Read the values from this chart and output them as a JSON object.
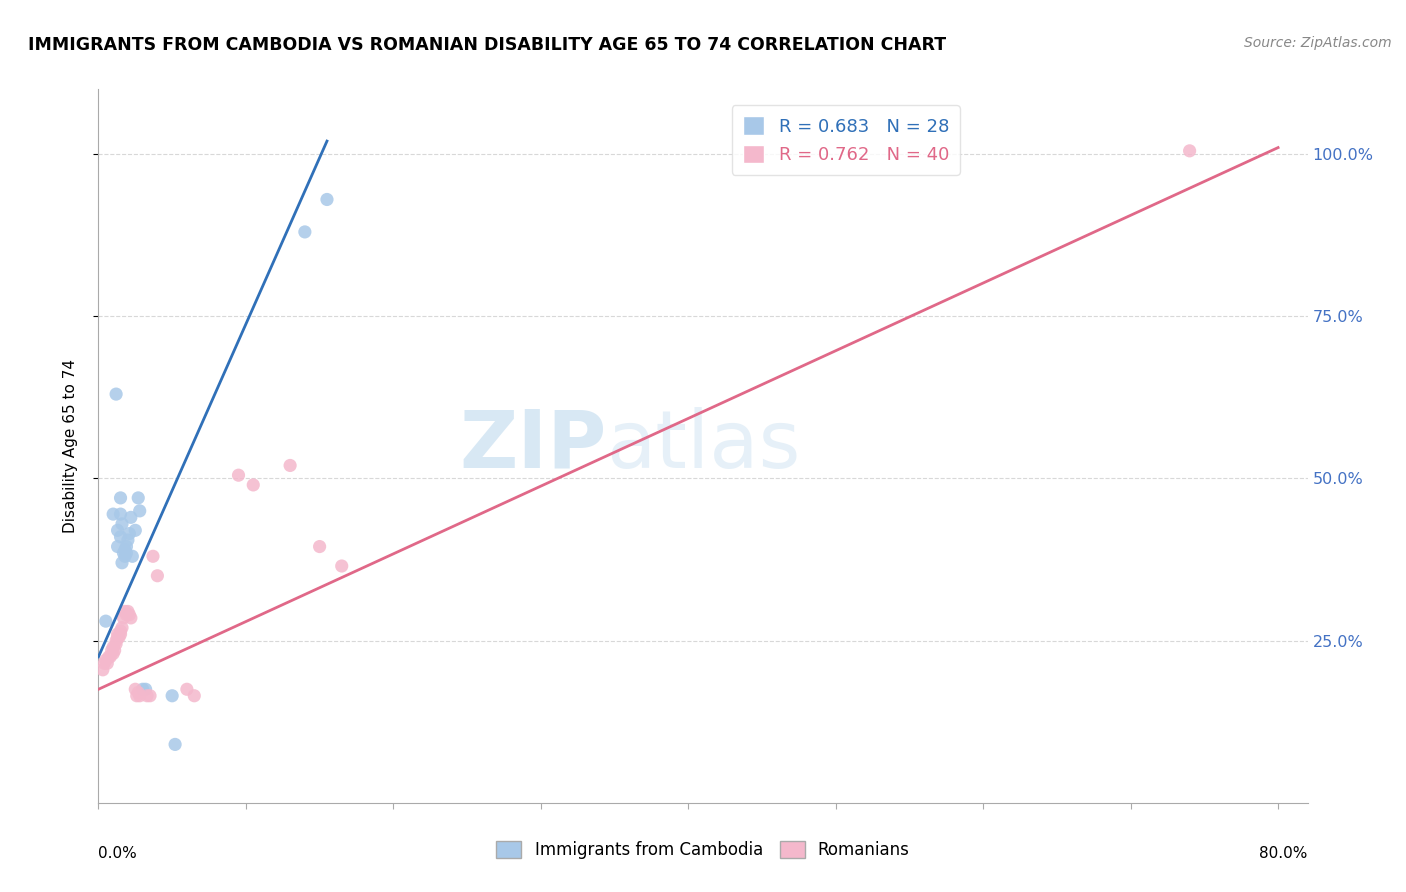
{
  "title": "IMMIGRANTS FROM CAMBODIA VS ROMANIAN DISABILITY AGE 65 TO 74 CORRELATION CHART",
  "source": "Source: ZipAtlas.com",
  "ylabel": "Disability Age 65 to 74",
  "ytick_labels": [
    "25.0%",
    "50.0%",
    "75.0%",
    "100.0%"
  ],
  "watermark_zip": "ZIP",
  "watermark_atlas": "atlas",
  "legend_line1": "R = 0.683   N = 28",
  "legend_line2": "R = 0.762   N = 40",
  "legend_labels_bottom": [
    "Immigrants from Cambodia",
    "Romanians"
  ],
  "blue_scatter": [
    [
      0.005,
      0.28
    ],
    [
      0.01,
      0.445
    ],
    [
      0.012,
      0.63
    ],
    [
      0.013,
      0.395
    ],
    [
      0.013,
      0.42
    ],
    [
      0.015,
      0.41
    ],
    [
      0.015,
      0.47
    ],
    [
      0.015,
      0.445
    ],
    [
      0.016,
      0.43
    ],
    [
      0.016,
      0.37
    ],
    [
      0.017,
      0.385
    ],
    [
      0.018,
      0.39
    ],
    [
      0.018,
      0.38
    ],
    [
      0.019,
      0.395
    ],
    [
      0.019,
      0.385
    ],
    [
      0.02,
      0.405
    ],
    [
      0.021,
      0.415
    ],
    [
      0.022,
      0.44
    ],
    [
      0.023,
      0.38
    ],
    [
      0.025,
      0.42
    ],
    [
      0.027,
      0.47
    ],
    [
      0.028,
      0.45
    ],
    [
      0.03,
      0.175
    ],
    [
      0.032,
      0.175
    ],
    [
      0.05,
      0.165
    ],
    [
      0.052,
      0.09
    ],
    [
      0.14,
      0.88
    ],
    [
      0.155,
      0.93
    ]
  ],
  "pink_scatter": [
    [
      0.003,
      0.205
    ],
    [
      0.004,
      0.215
    ],
    [
      0.005,
      0.22
    ],
    [
      0.006,
      0.215
    ],
    [
      0.007,
      0.225
    ],
    [
      0.008,
      0.225
    ],
    [
      0.009,
      0.235
    ],
    [
      0.01,
      0.23
    ],
    [
      0.01,
      0.24
    ],
    [
      0.011,
      0.235
    ],
    [
      0.012,
      0.245
    ],
    [
      0.012,
      0.25
    ],
    [
      0.013,
      0.255
    ],
    [
      0.013,
      0.26
    ],
    [
      0.014,
      0.255
    ],
    [
      0.015,
      0.26
    ],
    [
      0.015,
      0.265
    ],
    [
      0.016,
      0.27
    ],
    [
      0.017,
      0.285
    ],
    [
      0.018,
      0.295
    ],
    [
      0.019,
      0.29
    ],
    [
      0.02,
      0.295
    ],
    [
      0.021,
      0.29
    ],
    [
      0.022,
      0.285
    ],
    [
      0.025,
      0.175
    ],
    [
      0.026,
      0.165
    ],
    [
      0.027,
      0.17
    ],
    [
      0.028,
      0.165
    ],
    [
      0.033,
      0.165
    ],
    [
      0.035,
      0.165
    ],
    [
      0.037,
      0.38
    ],
    [
      0.04,
      0.35
    ],
    [
      0.06,
      0.175
    ],
    [
      0.065,
      0.165
    ],
    [
      0.095,
      0.505
    ],
    [
      0.105,
      0.49
    ],
    [
      0.13,
      0.52
    ],
    [
      0.15,
      0.395
    ],
    [
      0.165,
      0.365
    ],
    [
      0.74,
      1.005
    ]
  ],
  "blue_line_x": [
    0.0,
    0.155
  ],
  "blue_line_y": [
    0.225,
    1.02
  ],
  "pink_line_x": [
    0.0,
    0.8
  ],
  "pink_line_y": [
    0.175,
    1.01
  ],
  "xlim": [
    0.0,
    0.82
  ],
  "ylim": [
    0.0,
    1.1
  ],
  "ytick_vals": [
    0.25,
    0.5,
    0.75,
    1.0
  ],
  "background_color": "#ffffff",
  "grid_color": "#d8d8d8",
  "blue_color": "#a8c8e8",
  "pink_color": "#f4b8cc",
  "blue_line_color": "#3070b8",
  "pink_line_color": "#e06888",
  "marker_size": 90,
  "title_fontsize": 12.5,
  "source_fontsize": 10,
  "ytick_fontsize": 11.5,
  "ylabel_fontsize": 11
}
